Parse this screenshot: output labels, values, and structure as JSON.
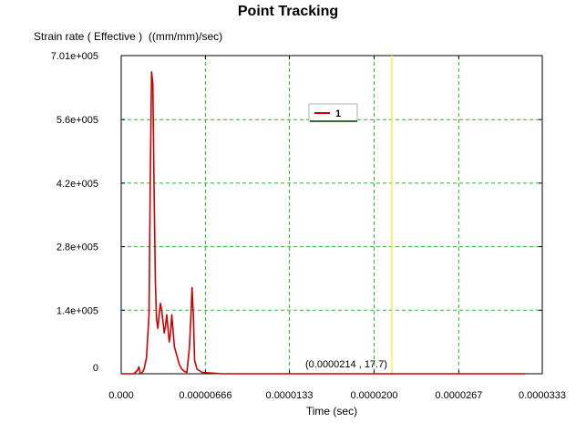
{
  "chart_data": {
    "type": "line",
    "title": "Point Tracking",
    "ylabel": "Strain rate ( Effective )  ((mm/mm)/sec)",
    "xlabel": "Time (sec)",
    "xlim": [
      0,
      3.33e-05
    ],
    "ylim": [
      0,
      701000
    ],
    "x_ticks": [
      {
        "value": 0,
        "label": "0.000"
      },
      {
        "value": 6.66e-06,
        "label": "0.00000666"
      },
      {
        "value": 1.33e-05,
        "label": "0.0000133"
      },
      {
        "value": 2e-05,
        "label": "0.0000200"
      },
      {
        "value": 2.67e-05,
        "label": "0.0000267"
      },
      {
        "value": 3.33e-05,
        "label": "0.0000333"
      }
    ],
    "y_ticks": [
      {
        "value": 0,
        "label": "0"
      },
      {
        "value": 140000,
        "label": "1.4e+005"
      },
      {
        "value": 280000,
        "label": "2.8e+005"
      },
      {
        "value": 420000,
        "label": "4.2e+005"
      },
      {
        "value": 560000,
        "label": "5.6e+005"
      },
      {
        "value": 701000,
        "label": "7.01e+005"
      }
    ],
    "grid": true,
    "legend_position": "top-center",
    "series": [
      {
        "name": "1",
        "color": "#cc0000",
        "x": [
          0,
          1e-06,
          1.3e-06,
          1.4e-06,
          1.5e-06,
          1.6e-06,
          1.8e-06,
          2e-06,
          2.2e-06,
          2.3e-06,
          2.4e-06,
          2.5e-06,
          2.6e-06,
          2.7e-06,
          2.8e-06,
          2.9e-06,
          3e-06,
          3.1e-06,
          3.2e-06,
          3.3e-06,
          3.4e-06,
          3.5e-06,
          3.6e-06,
          3.7e-06,
          3.8e-06,
          3.9e-06,
          4e-06,
          4.2e-06,
          4.4e-06,
          4.6e-06,
          4.8e-06,
          5e-06,
          5.2e-06,
          5.4e-06,
          5.5e-06,
          5.6e-06,
          5.7e-06,
          5.8e-06,
          6e-06,
          6.4e-06,
          8e-06,
          1.2e-05,
          1.6e-05,
          2.14e-05,
          2.5e-05,
          3e-05,
          3.2e-05
        ],
        "y": [
          0,
          0,
          8000,
          15000,
          2000,
          0,
          10000,
          35000,
          130000,
          430000,
          665000,
          640000,
          400000,
          200000,
          120000,
          100000,
          130000,
          155000,
          140000,
          115000,
          90000,
          105000,
          130000,
          100000,
          70000,
          90000,
          130000,
          60000,
          40000,
          20000,
          10000,
          5000,
          3000,
          60000,
          120000,
          190000,
          130000,
          30000,
          10000,
          3000,
          0,
          0,
          0,
          17.7,
          0,
          0,
          0
        ]
      }
    ],
    "cursor": {
      "x": 2.14e-05,
      "y": 17.7,
      "label": "(0.0000214 , 17.7)",
      "line_color": "#ffee44"
    }
  }
}
